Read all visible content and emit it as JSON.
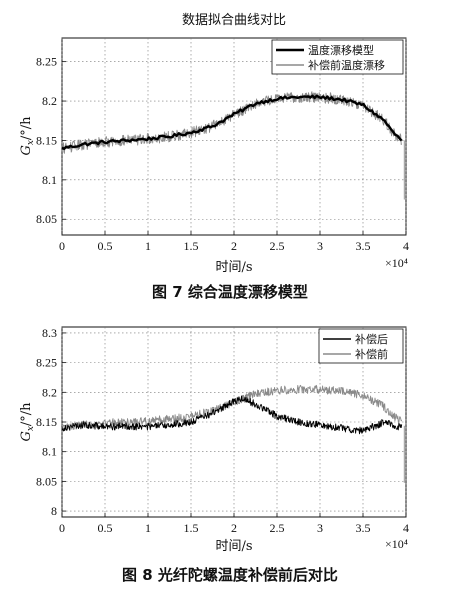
{
  "chart_data": [
    {
      "type": "line",
      "title": "数据拟合曲线对比",
      "xlabel": "时间/s",
      "x_scale_label": "×10⁴",
      "ylabel_main": "G",
      "ylabel_sub": "x",
      "ylabel_unit": "/°/h",
      "caption": "图 7   综合温度漂移模型",
      "xlim": [
        0,
        4
      ],
      "ylim": [
        8.03,
        8.28
      ],
      "xticks": [
        "0",
        "0.5",
        "1",
        "1.5",
        "2",
        "2.5",
        "3",
        "3.5",
        "4"
      ],
      "yticks": [
        "8.05",
        "8.1",
        "8.15",
        "8.2",
        "8.25"
      ],
      "grid": true,
      "legend_position": "top-right",
      "series": [
        {
          "name": "温度漂移模型",
          "style": "thick-black",
          "x": [
            0,
            0.25,
            0.5,
            0.75,
            1.0,
            1.25,
            1.5,
            1.75,
            2.0,
            2.25,
            2.5,
            2.75,
            3.0,
            3.25,
            3.5,
            3.75,
            3.85,
            3.95
          ],
          "y": [
            8.14,
            8.145,
            8.148,
            8.15,
            8.152,
            8.155,
            8.16,
            8.168,
            8.183,
            8.197,
            8.203,
            8.205,
            8.205,
            8.202,
            8.195,
            8.175,
            8.16,
            8.15
          ]
        },
        {
          "name": "补偿前温度漂移",
          "style": "gray-noisy",
          "x": [
            0,
            0.25,
            0.5,
            0.75,
            1.0,
            1.25,
            1.5,
            1.75,
            2.0,
            2.25,
            2.5,
            2.75,
            3.0,
            3.25,
            3.5,
            3.75,
            3.85,
            3.95
          ],
          "y": [
            8.14,
            8.145,
            8.148,
            8.15,
            8.152,
            8.155,
            8.16,
            8.168,
            8.183,
            8.197,
            8.203,
            8.205,
            8.205,
            8.202,
            8.195,
            8.175,
            8.16,
            8.15
          ]
        }
      ]
    },
    {
      "type": "line",
      "title": "",
      "xlabel": "时间/s",
      "x_scale_label": "×10⁴",
      "ylabel_main": "G",
      "ylabel_sub": "x",
      "ylabel_unit": "/°/h",
      "caption": "图 8   光纤陀螺温度补偿前后对比",
      "xlim": [
        0,
        4
      ],
      "ylim": [
        7.99,
        8.31
      ],
      "xticks": [
        "0",
        "0.5",
        "1",
        "1.5",
        "2",
        "2.5",
        "3",
        "3.5",
        "4"
      ],
      "yticks": [
        "8",
        "8.05",
        "8.1",
        "8.15",
        "8.2",
        "8.25",
        "8.3"
      ],
      "grid": true,
      "legend_position": "top-right",
      "series": [
        {
          "name": "补偿后",
          "style": "black-noisy",
          "x": [
            0,
            0.25,
            0.5,
            0.75,
            1.0,
            1.25,
            1.5,
            1.75,
            2.0,
            2.1,
            2.25,
            2.5,
            2.75,
            3.0,
            3.25,
            3.5,
            3.75,
            3.95
          ],
          "y": [
            8.14,
            8.145,
            8.142,
            8.143,
            8.142,
            8.145,
            8.15,
            8.165,
            8.185,
            8.19,
            8.18,
            8.16,
            8.15,
            8.145,
            8.14,
            8.135,
            8.15,
            8.14
          ]
        },
        {
          "name": "补偿前",
          "style": "gray-noisy",
          "x": [
            0,
            0.25,
            0.5,
            0.75,
            1.0,
            1.25,
            1.5,
            1.75,
            2.0,
            2.25,
            2.5,
            2.75,
            3.0,
            3.25,
            3.5,
            3.75,
            3.85,
            3.95
          ],
          "y": [
            8.14,
            8.145,
            8.148,
            8.15,
            8.152,
            8.155,
            8.16,
            8.168,
            8.183,
            8.197,
            8.203,
            8.205,
            8.205,
            8.202,
            8.195,
            8.175,
            8.16,
            8.15
          ]
        }
      ]
    }
  ]
}
